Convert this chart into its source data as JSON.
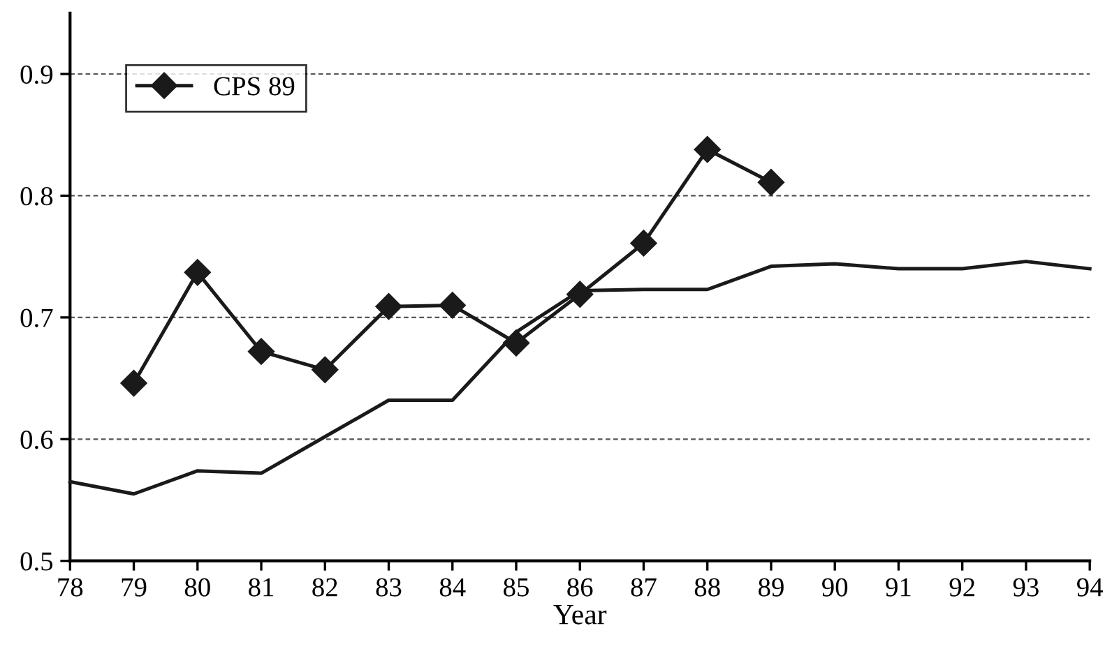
{
  "chart_data": {
    "type": "line",
    "xlabel": "Year",
    "x": [
      78,
      79,
      80,
      81,
      82,
      83,
      84,
      85,
      86,
      87,
      88,
      89,
      90,
      91,
      92,
      93,
      94
    ],
    "series": [
      {
        "name": "CPS 89",
        "color": "#1a1a1a",
        "marker": "diamond",
        "x": [
          79,
          80,
          81,
          82,
          83,
          84,
          85,
          86,
          87,
          88,
          89
        ],
        "values": [
          0.646,
          0.737,
          0.672,
          0.657,
          0.709,
          0.71,
          0.679,
          0.719,
          0.761,
          0.838,
          0.811
        ]
      },
      {
        "color": "#1a1a1a",
        "marker": "none",
        "values": [
          0.565,
          0.555,
          0.574,
          0.572,
          0.602,
          0.632,
          0.632,
          0.688,
          0.722,
          0.723,
          0.723,
          0.742,
          0.744,
          0.74,
          0.74,
          0.746,
          0.74
        ]
      }
    ],
    "xlim": [
      78,
      94
    ],
    "xticks": [
      78,
      79,
      80,
      81,
      82,
      83,
      84,
      85,
      86,
      87,
      88,
      89,
      90,
      91,
      92,
      93,
      94
    ],
    "ylim": [
      0.5,
      0.95
    ],
    "yticks": [
      0.5,
      0.6,
      0.7,
      0.8,
      0.9
    ],
    "grid": "y",
    "legend": "top left",
    "line_style": "solid"
  }
}
